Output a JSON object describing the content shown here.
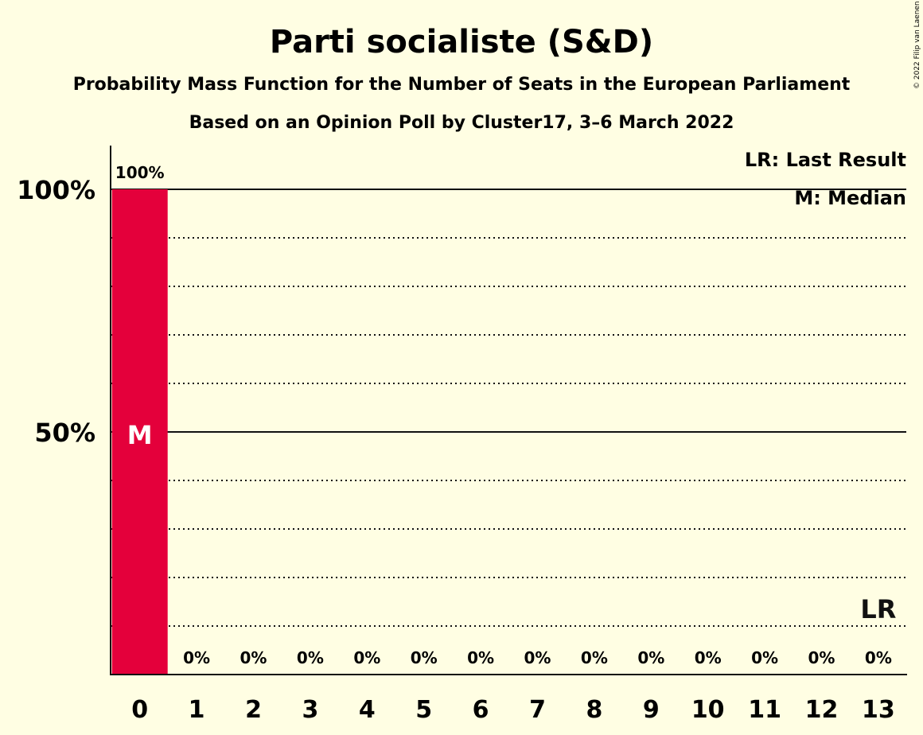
{
  "copyright": "© 2022 Filip van Laenen",
  "chart_data": {
    "type": "bar",
    "title": "Parti socialiste (S&D)",
    "subtitle": "Probability Mass Function for the Number of Seats in the European Parliament",
    "subtitle2": "Based on an Opinion Poll by Cluster17, 3–6 March 2022",
    "categories": [
      "0",
      "1",
      "2",
      "3",
      "4",
      "5",
      "6",
      "7",
      "8",
      "9",
      "10",
      "11",
      "12",
      "13"
    ],
    "values": [
      100,
      0,
      0,
      0,
      0,
      0,
      0,
      0,
      0,
      0,
      0,
      0,
      0,
      0
    ],
    "value_labels": [
      "100%",
      "0%",
      "0%",
      "0%",
      "0%",
      "0%",
      "0%",
      "0%",
      "0%",
      "0%",
      "0%",
      "0%",
      "0%",
      "0%"
    ],
    "ylim": [
      0,
      110
    ],
    "yticks": [
      {
        "value": 50,
        "label": "50%"
      },
      {
        "value": 100,
        "label": "100%"
      }
    ],
    "minor_gridlines": [
      10,
      20,
      30,
      40,
      60,
      70,
      80,
      90
    ],
    "bar_color": "#E4003B",
    "median": {
      "seats": 0,
      "label": "M"
    },
    "last_result": {
      "seats": 13,
      "label": "LR"
    },
    "legend": {
      "placement": "top-right",
      "items": [
        "LR: Last Result",
        "M: Median"
      ]
    }
  }
}
